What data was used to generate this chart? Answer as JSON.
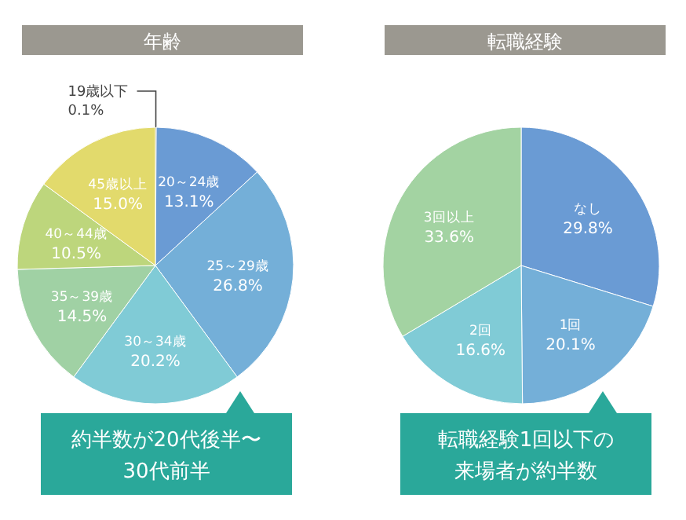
{
  "chart_data": [
    {
      "type": "pie",
      "title": "年齢",
      "categories": [
        "19歳以下",
        "20～24歳",
        "25～29歳",
        "30～34歳",
        "35～39歳",
        "40～44歳",
        "45歳以上"
      ],
      "values": [
        0.1,
        13.1,
        26.8,
        20.2,
        14.5,
        10.5,
        15.0
      ],
      "value_labels": [
        "0.1%",
        "13.1%",
        "26.8%",
        "20.2%",
        "14.5%",
        "10.5%",
        "15.0%"
      ],
      "colors": [
        "#8f8a55",
        "#6a9bd4",
        "#74afd8",
        "#80cbd6",
        "#a0d1a4",
        "#bdd67c",
        "#e2da6c"
      ],
      "annotations": [
        "約半数が20代後半〜30代前半"
      ]
    },
    {
      "type": "pie",
      "title": "転職経験",
      "categories": [
        "なし",
        "1回",
        "2回",
        "3回以上"
      ],
      "values": [
        29.8,
        20.1,
        16.6,
        33.6
      ],
      "value_labels": [
        "29.8%",
        "20.1%",
        "16.6%",
        "33.6%"
      ],
      "colors": [
        "#6a9bd4",
        "#74afd8",
        "#80cbd6",
        "#a3d3a2"
      ],
      "annotations": [
        "転職経験1回以下の来場者が約半数"
      ]
    }
  ]
}
